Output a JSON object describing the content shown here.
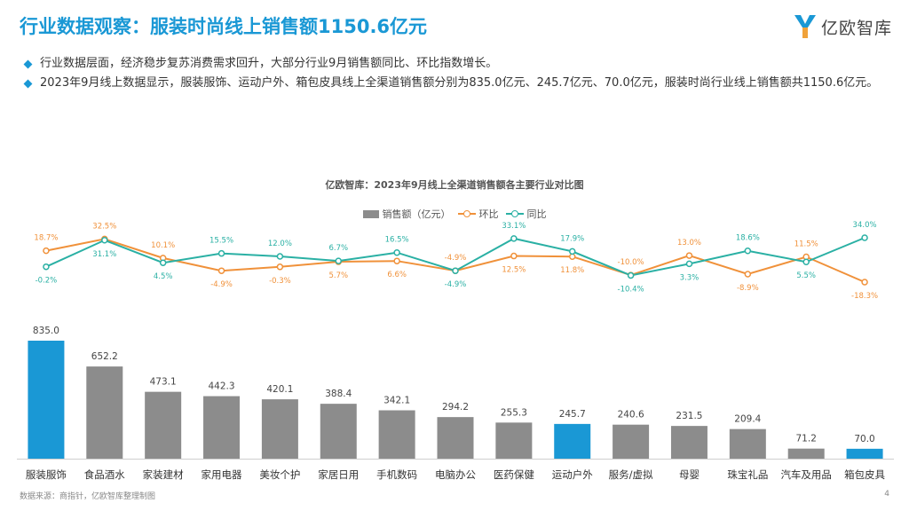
{
  "header": {
    "title": "行业数据观察：服装时尚线上销售额1150.6亿元",
    "logo_text": "亿欧智库"
  },
  "bullets": [
    "行业数据层面，经济稳步复苏消费需求回升，大部分行业9月销售额同比、环比指数增长。",
    "2023年9月线上数据显示，服装服饰、运动户外、箱包皮具线上全渠道销售额分别为835.0亿元、245.7亿元、70.0亿元，服装时尚行业线上销售额共1150.6亿元。"
  ],
  "colors": {
    "accent": "#1a98d5",
    "bar_gray": "#8c8c8c",
    "bar_blue": "#1a98d5",
    "mom_line": "#f0913a",
    "yoy_line": "#2ab0a4"
  },
  "chart_data": {
    "type": "bar",
    "title": "亿欧智库：2023年9月线上全渠道销售额各主要行业对比图",
    "legend": {
      "bar": "销售额（亿元）",
      "mom": "环比",
      "yoy": "同比"
    },
    "categories": [
      "服装服饰",
      "食品酒水",
      "家装建材",
      "家用电器",
      "美妆个护",
      "家居日用",
      "手机数码",
      "电脑办公",
      "医药保健",
      "运动户外",
      "服务/虚拟",
      "母婴",
      "珠宝礼品",
      "汽车及用品",
      "箱包皮具"
    ],
    "values": [
      835.0,
      652.2,
      473.1,
      442.3,
      420.1,
      388.4,
      342.1,
      294.2,
      255.3,
      245.7,
      240.6,
      231.5,
      209.4,
      71.2,
      70.0
    ],
    "value_labels": [
      "835.0",
      "652.2",
      "473.1",
      "442.3",
      "420.1",
      "388.4",
      "342.1",
      "294.2",
      "255.3",
      "245.7",
      "240.6",
      "231.5",
      "209.4",
      "71.2",
      "70.0"
    ],
    "highlight": [
      true,
      false,
      false,
      false,
      false,
      false,
      false,
      false,
      false,
      true,
      false,
      false,
      false,
      false,
      true
    ],
    "series": [
      {
        "name": "环比",
        "values": [
          18.7,
          32.5,
          10.1,
          -4.9,
          -0.3,
          5.7,
          6.6,
          -4.9,
          12.5,
          11.8,
          -10.0,
          13.0,
          -8.9,
          11.5,
          -18.3
        ],
        "labels": [
          "18.7%",
          "32.5%",
          "10.1%",
          "-4.9%",
          "-0.3%",
          "5.7%",
          "6.6%",
          "-4.9%",
          "12.5%",
          "11.8%",
          "-10.0%",
          "13.0%",
          "-8.9%",
          "11.5%",
          "-18.3%"
        ]
      },
      {
        "name": "同比",
        "values": [
          -0.2,
          31.1,
          4.5,
          15.5,
          12.0,
          6.7,
          16.5,
          -4.9,
          33.1,
          17.9,
          -10.4,
          3.3,
          18.6,
          5.5,
          34.0
        ],
        "labels": [
          "-0.2%",
          "31.1%",
          "4.5%",
          "15.5%",
          "12.0%",
          "6.7%",
          "16.5%",
          "-4.9%",
          "33.1%",
          "17.9%",
          "-10.4%",
          "3.3%",
          "18.6%",
          "5.5%",
          "34.0%"
        ]
      }
    ],
    "ylim": [
      0,
      835
    ],
    "xlabel": "",
    "ylabel": ""
  },
  "footer": {
    "source": "数据来源：商指针，亿欧智库整理制图",
    "page": "4"
  }
}
